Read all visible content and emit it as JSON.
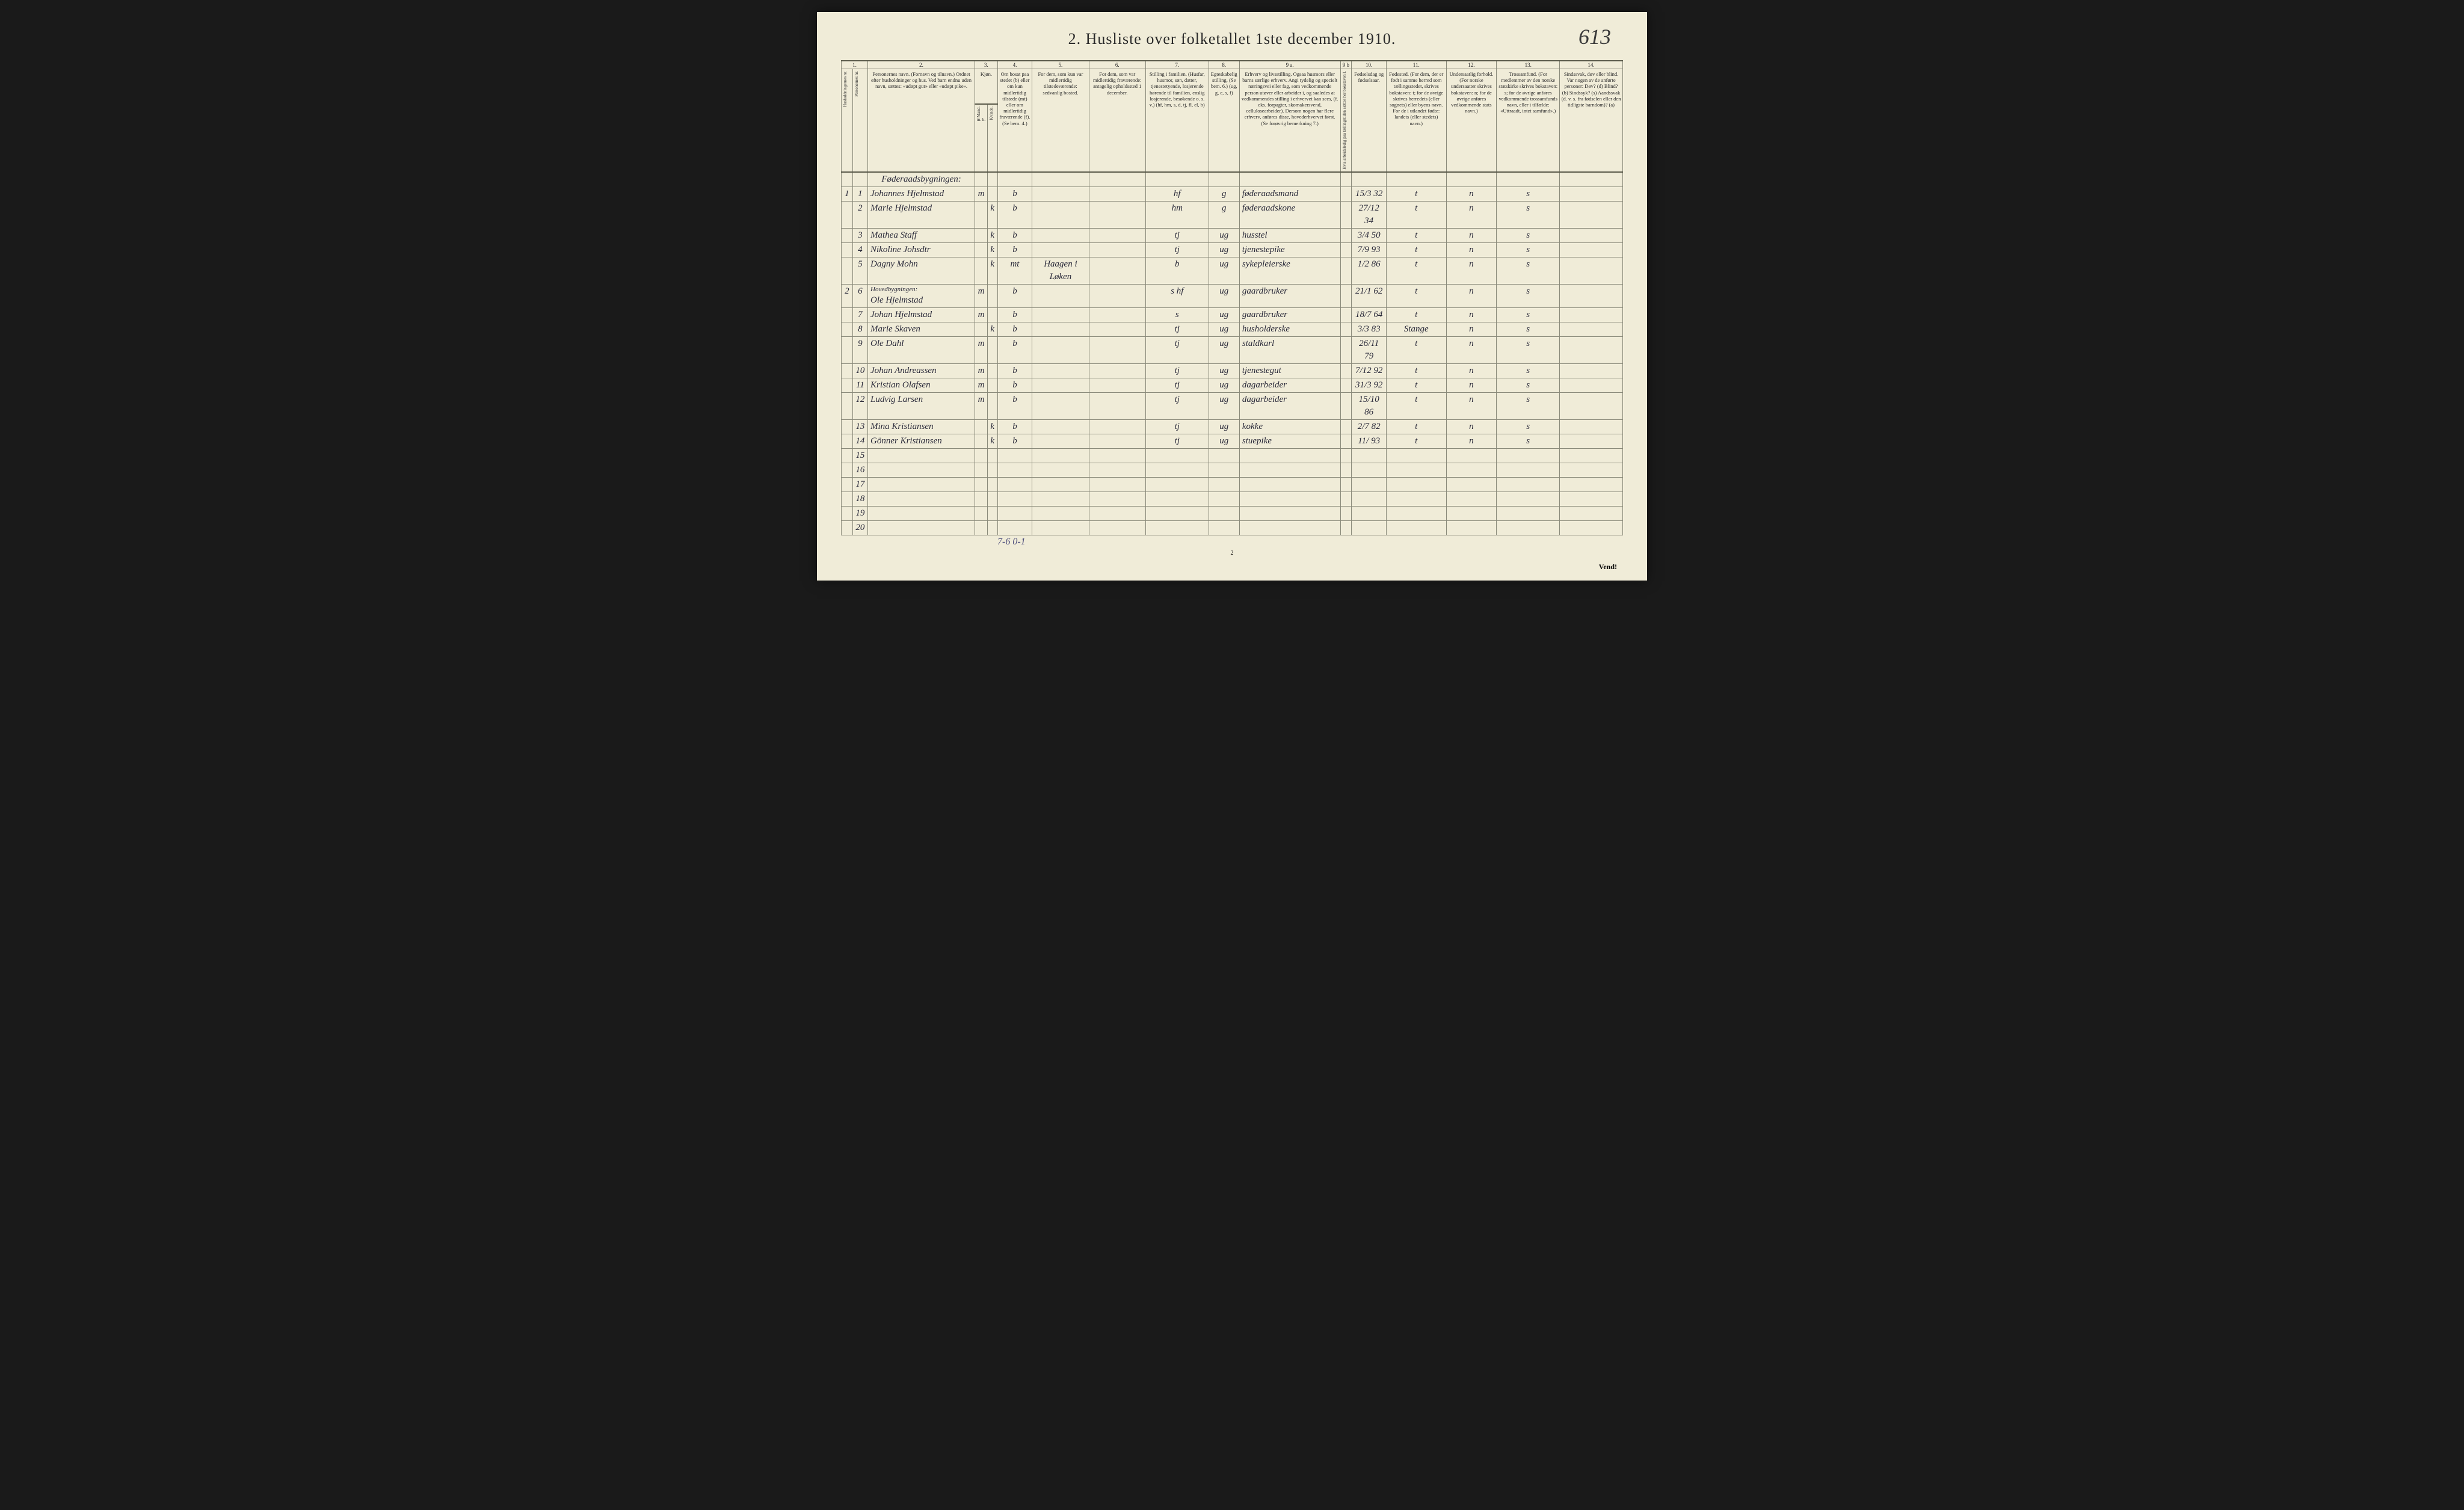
{
  "corner_annotation": "613",
  "title": "2.  Husliste over folketallet 1ste december 1910.",
  "footer_handwritten": "7-6 0-1",
  "page_number": "2",
  "vend_label": "Vend!",
  "col_numbers": [
    "1.",
    "2.",
    "3.",
    "4.",
    "5.",
    "6.",
    "7.",
    "8.",
    "9 a.",
    "9 b",
    "10.",
    "11.",
    "12.",
    "13.",
    "14."
  ],
  "headers": {
    "c1": "Husholdningernes nr.",
    "c1b": "Personernes nr.",
    "c2": "Personernes navn.\n(Fornavn og tilnavn.)\nOrdnet efter husholdninger og hus.\nVed barn endnu uden navn, sættes: «udøpt gut» eller «udøpt pike».",
    "c3": "Kjøn.",
    "c3a": "Mand.",
    "c3b": "Kvinde.",
    "c4": "Om bosat paa stedet (b) eller om kun midlertidig tilstede (mt) eller om midlertidig fraværende (f).\n(Se bem. 4.)",
    "c5": "For dem, som kun var midlertidig tilstedeværende:\nsedvanlig bosted.",
    "c6": "For dem, som var midlertidig fraværende:\nantagelig opholdssted 1 december.",
    "c7": "Stilling i familien.\n(Husfar, husmor, søn, datter, tjenestetyende, losjerende hørende til familien, enslig losjerende, besøkende o. s. v.)\n(hf, hm, s, d, tj, fl, el, b)",
    "c8": "Egteskabelig stilling.\n(Se bem. 6.)\n(ug, g, e, s, f)",
    "c9a": "Erhverv og livsstilling.\nOgsaa husmors eller barns særlige erhverv. Angi tydelig og specielt næringsvei eller fag, som vedkommende person utøver eller arbeider i, og saaledes at vedkommendes stilling i erhvervet kan sees, (f. eks. forpagter, skomakersvend, cellulosearbeider). Dersom nogen har flere erhverv, anføres disse, hovederhvervet først.\n(Se forøvrig bemerkning 7.)",
    "c9b": "Hvis arbeidsledig paa tællingstiden sættes her bokstaven l.",
    "c10": "Fødselsdag og fødselsaar.",
    "c11": "Fødested.\n(For dem, der er født i samme herred som tællingsstedet, skrives bokstaven: t; for de øvrige skrives herredets (eller sognets) eller byens navn. For de i utlandet fødte: landets (eller stedets) navn.)",
    "c12": "Undersaatlig forhold.\n(For norske undersaatter skrives bokstaven: n; for de øvrige anføres vedkommende stats navn.)",
    "c13": "Trossamfund.\n(For medlemmer av den norske statskirke skrives bokstaven: s; for de øvrige anføres vedkommende trossamfunds navn, eller i tilfælde: «Uttraadt, intet samfund».)",
    "c14": "Sindssvak, døv eller blind.\nVar nogen av de anførte personer:\nDøv? (d)\nBlind? (b)\nSindssyk? (s)\nAandssvak (d. v. s. fra fødselen eller den tidligste barndom)? (a)"
  },
  "section1_label": "Føderaadsbygningen:",
  "section2_label": "Hovedbygningen:",
  "rows": [
    {
      "hh": "1",
      "pn": "1",
      "name": "Johannes Hjelmstad",
      "m": "m",
      "k": "",
      "res": "b",
      "temp": "",
      "away": "",
      "fam": "hf",
      "mar": "g",
      "occ": "føderaadsmand",
      "wl": "",
      "dob": "15/3 32",
      "bp": "t",
      "nat": "n",
      "rel": "s",
      "dis": ""
    },
    {
      "hh": "",
      "pn": "2",
      "name": "Marie Hjelmstad",
      "m": "",
      "k": "k",
      "res": "b",
      "temp": "",
      "away": "",
      "fam": "hm",
      "mar": "g",
      "occ": "føderaadskone",
      "wl": "",
      "dob": "27/12 34",
      "bp": "t",
      "nat": "n",
      "rel": "s",
      "dis": ""
    },
    {
      "hh": "",
      "pn": "3",
      "name": "Mathea Staff",
      "m": "",
      "k": "k",
      "res": "b",
      "temp": "",
      "away": "",
      "fam": "tj",
      "mar": "ug",
      "occ": "husstel",
      "wl": "",
      "dob": "3/4 50",
      "bp": "t",
      "nat": "n",
      "rel": "s",
      "dis": ""
    },
    {
      "hh": "",
      "pn": "4",
      "name": "Nikoline Johsdtr",
      "m": "",
      "k": "k",
      "res": "b",
      "temp": "",
      "away": "",
      "fam": "tj",
      "mar": "ug",
      "occ": "tjenestepike",
      "wl": "",
      "dob": "7/9 93",
      "bp": "t",
      "nat": "n",
      "rel": "s",
      "dis": ""
    },
    {
      "hh": "",
      "pn": "5",
      "name": "Dagny Mohn",
      "m": "",
      "k": "k",
      "res": "mt",
      "temp": "Haagen i Løken",
      "away": "",
      "fam": "b",
      "mar": "ug",
      "occ": "sykepleierske",
      "wl": "",
      "dob": "1/2 86",
      "bp": "t",
      "nat": "n",
      "rel": "s",
      "dis": ""
    },
    {
      "hh": "2",
      "pn": "6",
      "name": "Ole Hjelmstad",
      "m": "m",
      "k": "",
      "res": "b",
      "temp": "",
      "away": "",
      "fam": "s hf",
      "mar": "ug",
      "occ": "gaardbruker",
      "wl": "",
      "dob": "21/1 62",
      "bp": "t",
      "nat": "n",
      "rel": "s",
      "dis": ""
    },
    {
      "hh": "",
      "pn": "7",
      "name": "Johan Hjelmstad",
      "m": "m",
      "k": "",
      "res": "b",
      "temp": "",
      "away": "",
      "fam": "s",
      "mar": "ug",
      "occ": "gaardbruker",
      "wl": "",
      "dob": "18/7 64",
      "bp": "t",
      "nat": "n",
      "rel": "s",
      "dis": ""
    },
    {
      "hh": "",
      "pn": "8",
      "name": "Marie Skaven",
      "m": "",
      "k": "k",
      "res": "b",
      "temp": "",
      "away": "",
      "fam": "tj",
      "mar": "ug",
      "occ": "husholderske",
      "wl": "",
      "dob": "3/3 83",
      "bp": "Stange",
      "nat": "n",
      "rel": "s",
      "dis": ""
    },
    {
      "hh": "",
      "pn": "9",
      "name": "Ole Dahl",
      "m": "m",
      "k": "",
      "res": "b",
      "temp": "",
      "away": "",
      "fam": "tj",
      "mar": "ug",
      "occ": "staldkarl",
      "wl": "",
      "dob": "26/11 79",
      "bp": "t",
      "nat": "n",
      "rel": "s",
      "dis": ""
    },
    {
      "hh": "",
      "pn": "10",
      "name": "Johan Andreassen",
      "m": "m",
      "k": "",
      "res": "b",
      "temp": "",
      "away": "",
      "fam": "tj",
      "mar": "ug",
      "occ": "tjenestegut",
      "wl": "",
      "dob": "7/12 92",
      "bp": "t",
      "nat": "n",
      "rel": "s",
      "dis": ""
    },
    {
      "hh": "",
      "pn": "11",
      "name": "Kristian Olafsen",
      "m": "m",
      "k": "",
      "res": "b",
      "temp": "",
      "away": "",
      "fam": "tj",
      "mar": "ug",
      "occ": "dagarbeider",
      "wl": "",
      "dob": "31/3 92",
      "bp": "t",
      "nat": "n",
      "rel": "s",
      "dis": ""
    },
    {
      "hh": "",
      "pn": "12",
      "name": "Ludvig Larsen",
      "m": "m",
      "k": "",
      "res": "b",
      "temp": "",
      "away": "",
      "fam": "tj",
      "mar": "ug",
      "occ": "dagarbeider",
      "wl": "",
      "dob": "15/10 86",
      "bp": "t",
      "nat": "n",
      "rel": "s",
      "dis": ""
    },
    {
      "hh": "",
      "pn": "13",
      "name": "Mina Kristiansen",
      "m": "",
      "k": "k",
      "res": "b",
      "temp": "",
      "away": "",
      "fam": "tj",
      "mar": "ug",
      "occ": "kokke",
      "wl": "",
      "dob": "2/7 82",
      "bp": "t",
      "nat": "n",
      "rel": "s",
      "dis": ""
    },
    {
      "hh": "",
      "pn": "14",
      "name": "Gönner Kristiansen",
      "m": "",
      "k": "k",
      "res": "b",
      "temp": "",
      "away": "",
      "fam": "tj",
      "mar": "ug",
      "occ": "stuepike",
      "wl": "",
      "dob": "11/ 93",
      "bp": "t",
      "nat": "n",
      "rel": "s",
      "dis": ""
    }
  ],
  "empty_row_labels": [
    "15",
    "16",
    "17",
    "18",
    "19",
    "20"
  ],
  "mk_label": "m. k."
}
